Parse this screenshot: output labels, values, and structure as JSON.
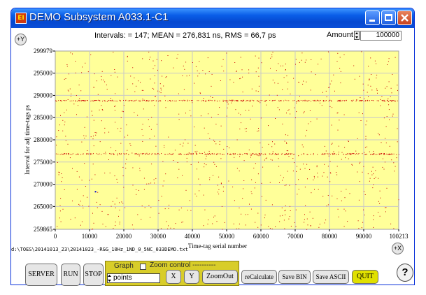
{
  "window": {
    "title": "DEMO Subsystem A033.1-C1",
    "app_icon_text": "EI",
    "controls": [
      "minimize",
      "maximize",
      "close"
    ]
  },
  "header": {
    "stats": "Intervals: = 147; MEAN = 276,831 ns, RMS = 66,7 ps",
    "plus_y": "+Y",
    "plus_x": "+X",
    "amount_label": "Amount",
    "amount_value": "100000"
  },
  "chart_data": {
    "type": "scatter",
    "xlabel": "Time-tag serial number",
    "ylabel": "Interval for adj time-tags ps",
    "xlim": [
      0,
      100213
    ],
    "ylim": [
      259865,
      299979
    ],
    "x_ticks": [
      "0",
      "10000",
      "20000",
      "30000",
      "40000",
      "50000",
      "60000",
      "70000",
      "80000",
      "90000",
      "100213"
    ],
    "y_ticks": [
      "299979",
      "295000",
      "290000",
      "285000",
      "280000",
      "275000",
      "270000",
      "265000",
      "259865"
    ],
    "x_tick_values": [
      0,
      10000,
      20000,
      30000,
      40000,
      50000,
      60000,
      70000,
      80000,
      90000,
      100213
    ],
    "y_tick_values": [
      299979,
      295000,
      290000,
      285000,
      280000,
      275000,
      270000,
      265000,
      259865
    ],
    "grid": true,
    "plot_background": "#ffff99",
    "point_color": "#cc0000",
    "bands": [
      {
        "y": 288880,
        "x_range": [
          0,
          100213
        ],
        "density": "high"
      },
      {
        "y": 276880,
        "x_range": [
          0,
          100213
        ],
        "density": "high"
      }
    ],
    "highlight_point": {
      "x": 11750,
      "y": 268320,
      "color": "#0000cc"
    }
  },
  "footer": {
    "filename": "d:\\TOES\\20141013_23\\20141023_-RGG_10Hz_1ND_0_5NC_033DEMO.txt"
  },
  "toolbar": {
    "server": "SERVER",
    "run": "RUN",
    "stop": "STOP",
    "graph_label": "Graph",
    "zoom_control_label": "Zoom control ----------",
    "mode_value": "points",
    "x": "X",
    "y": "Y",
    "zoom_out": "ZoomOut",
    "recalculate": "reCalculate",
    "save_bin": "Save BIN",
    "save_ascii": "Save ASCII",
    "quit": "QUIT",
    "help": "?"
  },
  "colors": {
    "titlebar": "#0a5ee8",
    "zoom_panel": "#d8cd29",
    "quit_button": "#e0e000",
    "close_button": "#c8421e"
  }
}
